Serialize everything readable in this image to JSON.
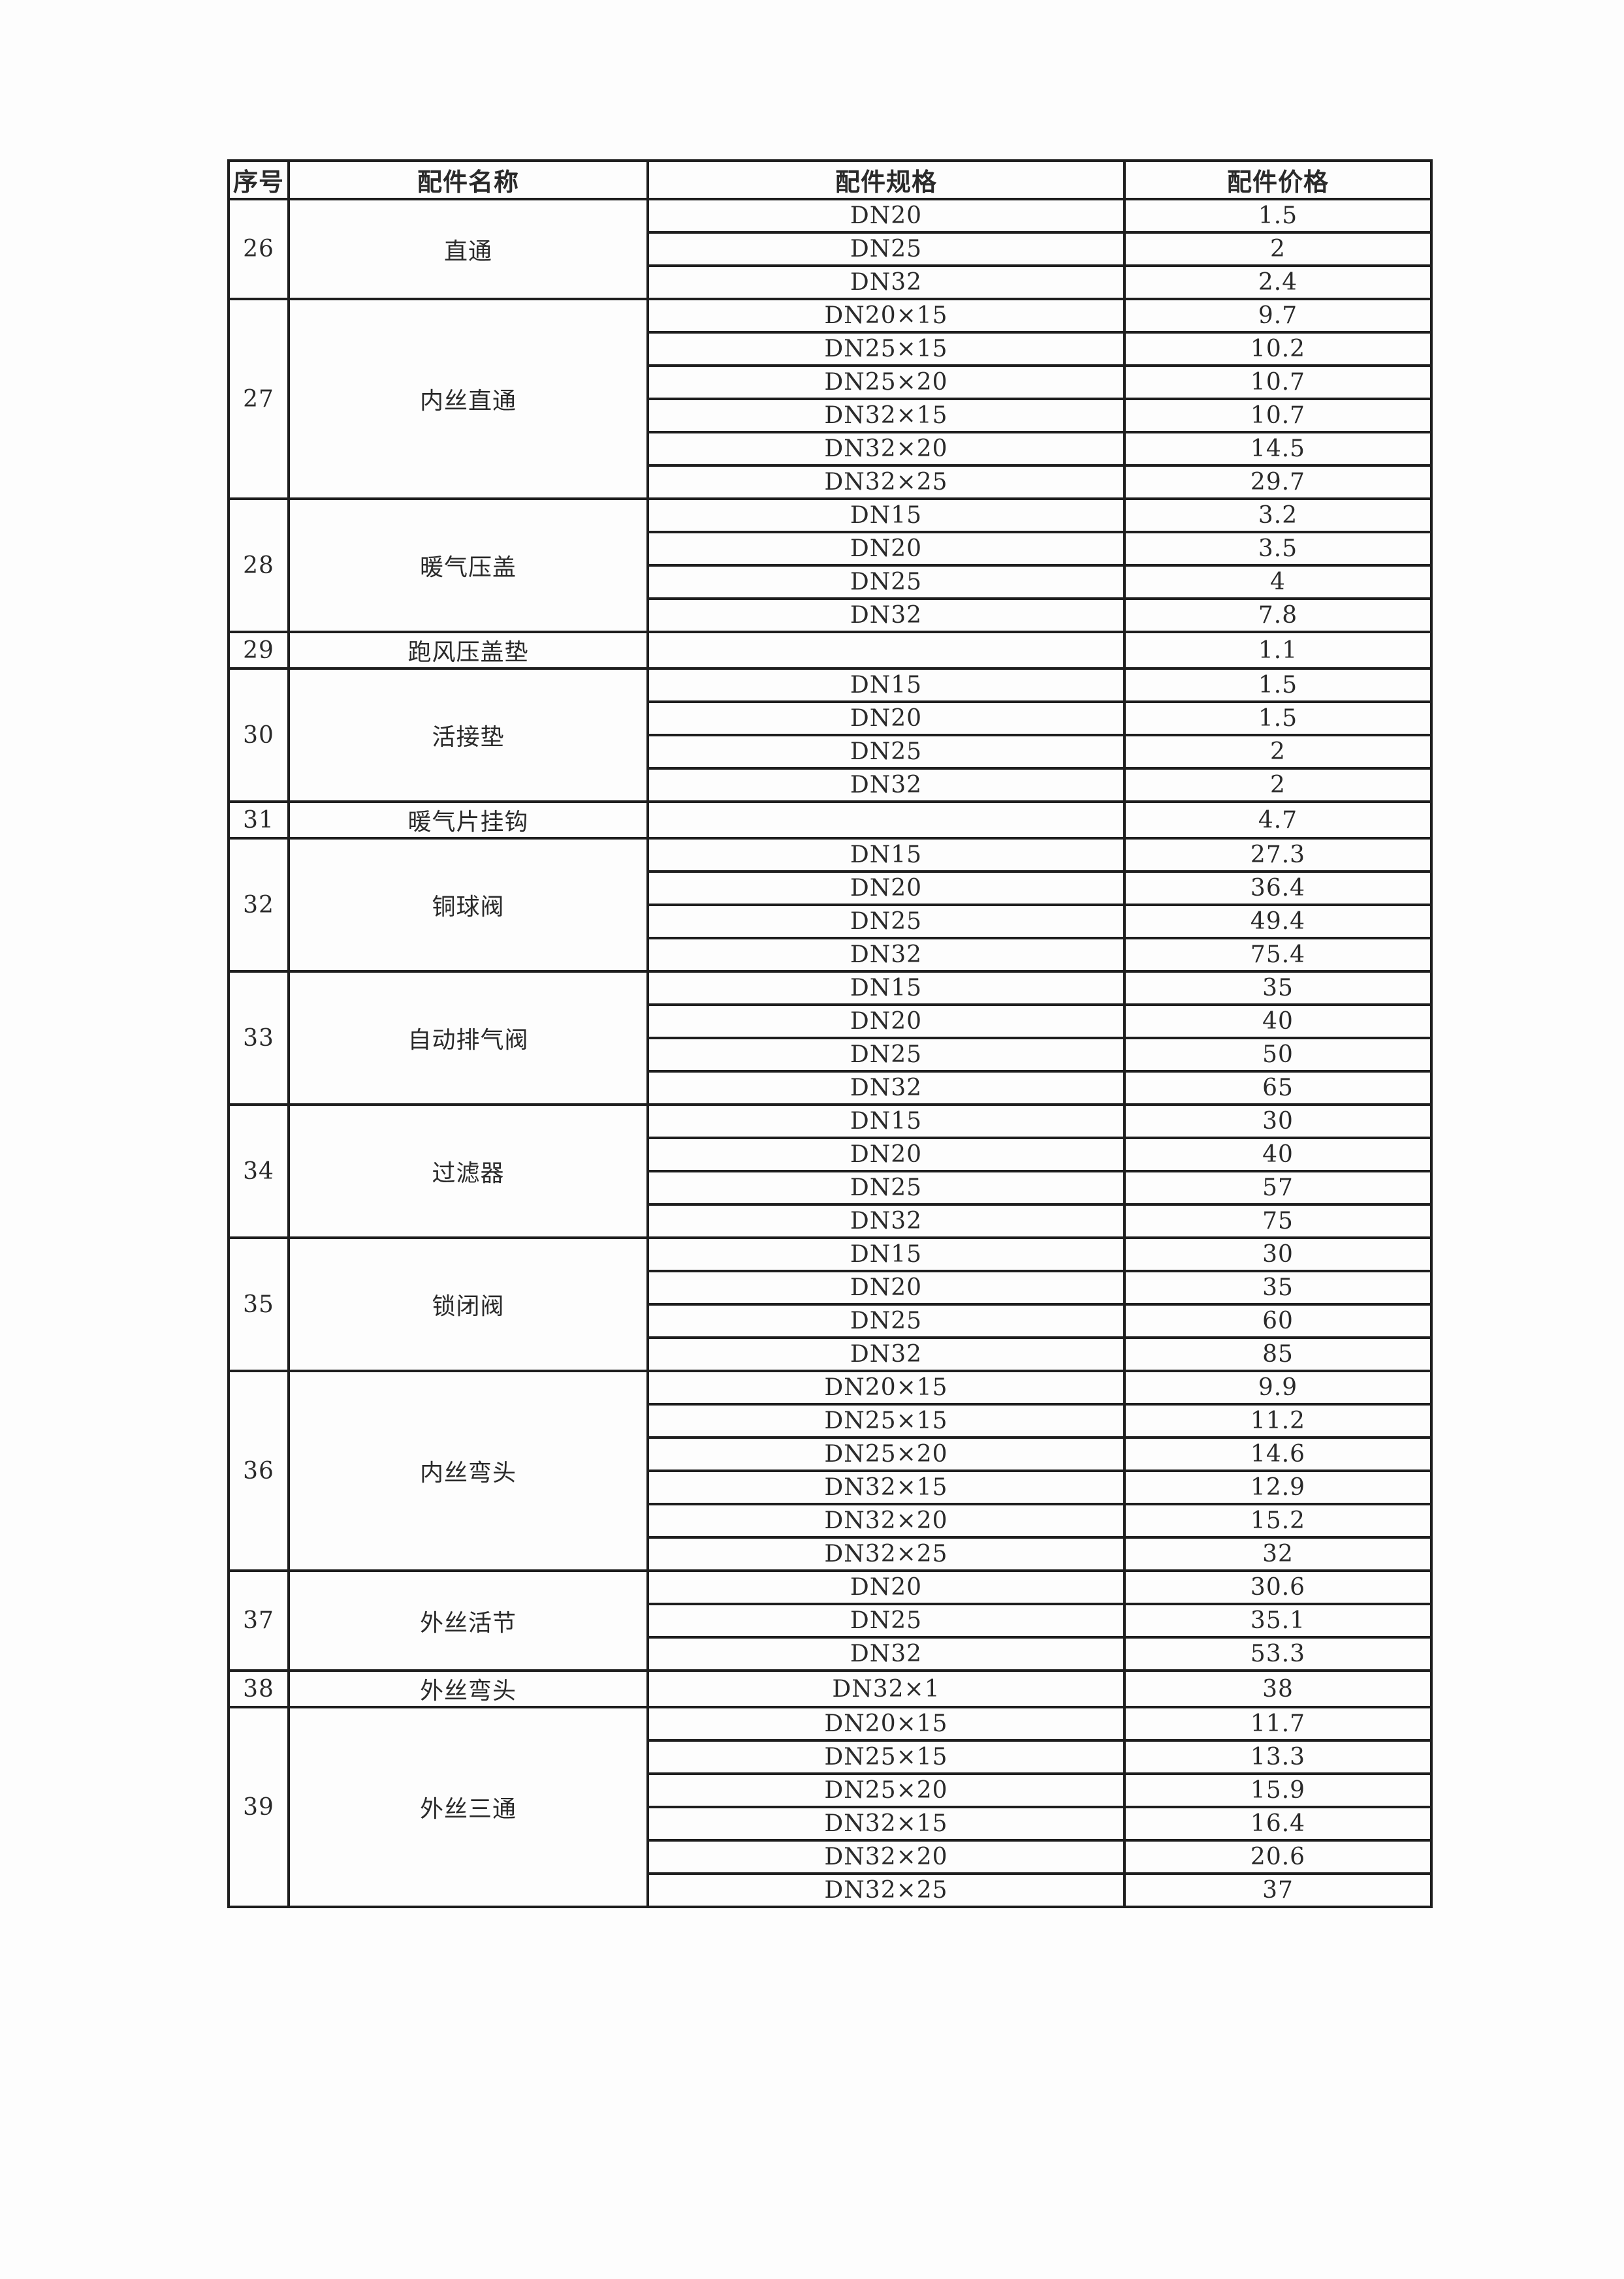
{
  "headers": {
    "no": "序号",
    "name": "配件名称",
    "spec": "配件规格",
    "price": "配件价格"
  },
  "groups": [
    {
      "no": "26",
      "name": "直通",
      "items": [
        {
          "spec": "DN20",
          "price": "1.5"
        },
        {
          "spec": "DN25",
          "price": "2"
        },
        {
          "spec": "DN32",
          "price": "2.4"
        }
      ]
    },
    {
      "no": "27",
      "name": "内丝直通",
      "items": [
        {
          "spec": "DN20×15",
          "price": "9.7"
        },
        {
          "spec": "DN25×15",
          "price": "10.2"
        },
        {
          "spec": "DN25×20",
          "price": "10.7"
        },
        {
          "spec": "DN32×15",
          "price": "10.7"
        },
        {
          "spec": "DN32×20",
          "price": "14.5"
        },
        {
          "spec": "DN32×25",
          "price": "29.7"
        }
      ]
    },
    {
      "no": "28",
      "name": "暖气压盖",
      "items": [
        {
          "spec": "DN15",
          "price": "3.2"
        },
        {
          "spec": "DN20",
          "price": "3.5"
        },
        {
          "spec": "DN25",
          "price": "4"
        },
        {
          "spec": "DN32",
          "price": "7.8"
        }
      ]
    },
    {
      "no": "29",
      "name": "跑风压盖垫",
      "items": [
        {
          "spec": "",
          "price": "1.1"
        }
      ]
    },
    {
      "no": "30",
      "name": "活接垫",
      "items": [
        {
          "spec": "DN15",
          "price": "1.5"
        },
        {
          "spec": "DN20",
          "price": "1.5"
        },
        {
          "spec": "DN25",
          "price": "2"
        },
        {
          "spec": "DN32",
          "price": "2"
        }
      ]
    },
    {
      "no": "31",
      "name": "暖气片挂钩",
      "items": [
        {
          "spec": "",
          "price": "4.7"
        }
      ]
    },
    {
      "no": "32",
      "name": "铜球阀",
      "items": [
        {
          "spec": "DN15",
          "price": "27.3"
        },
        {
          "spec": "DN20",
          "price": "36.4"
        },
        {
          "spec": "DN25",
          "price": "49.4"
        },
        {
          "spec": "DN32",
          "price": "75.4"
        }
      ]
    },
    {
      "no": "33",
      "name": "自动排气阀",
      "items": [
        {
          "spec": "DN15",
          "price": "35"
        },
        {
          "spec": "DN20",
          "price": "40"
        },
        {
          "spec": "DN25",
          "price": "50"
        },
        {
          "spec": "DN32",
          "price": "65"
        }
      ]
    },
    {
      "no": "34",
      "name": "过滤器",
      "items": [
        {
          "spec": "DN15",
          "price": "30"
        },
        {
          "spec": "DN20",
          "price": "40"
        },
        {
          "spec": "DN25",
          "price": "57"
        },
        {
          "spec": "DN32",
          "price": "75"
        }
      ]
    },
    {
      "no": "35",
      "name": "锁闭阀",
      "items": [
        {
          "spec": "DN15",
          "price": "30"
        },
        {
          "spec": "DN20",
          "price": "35"
        },
        {
          "spec": "DN25",
          "price": "60"
        },
        {
          "spec": "DN32",
          "price": "85"
        }
      ]
    },
    {
      "no": "36",
      "name": "内丝弯头",
      "items": [
        {
          "spec": "DN20×15",
          "price": "9.9"
        },
        {
          "spec": "DN25×15",
          "price": "11.2"
        },
        {
          "spec": "DN25×20",
          "price": "14.6"
        },
        {
          "spec": "DN32×15",
          "price": "12.9"
        },
        {
          "spec": "DN32×20",
          "price": "15.2"
        },
        {
          "spec": "DN32×25",
          "price": "32"
        }
      ]
    },
    {
      "no": "37",
      "name": "外丝活节",
      "items": [
        {
          "spec": "DN20",
          "price": "30.6"
        },
        {
          "spec": "DN25",
          "price": "35.1"
        },
        {
          "spec": "DN32",
          "price": "53.3"
        }
      ]
    },
    {
      "no": "38",
      "name": "外丝弯头",
      "items": [
        {
          "spec": "DN32×1",
          "price": "38"
        }
      ]
    },
    {
      "no": "39",
      "name": "外丝三通",
      "items": [
        {
          "spec": "DN20×15",
          "price": "11.7"
        },
        {
          "spec": "DN25×15",
          "price": "13.3"
        },
        {
          "spec": "DN25×20",
          "price": "15.9"
        },
        {
          "spec": "DN32×15",
          "price": "16.4"
        },
        {
          "spec": "DN32×20",
          "price": "20.6"
        },
        {
          "spec": "DN32×25",
          "price": "37"
        }
      ]
    }
  ]
}
